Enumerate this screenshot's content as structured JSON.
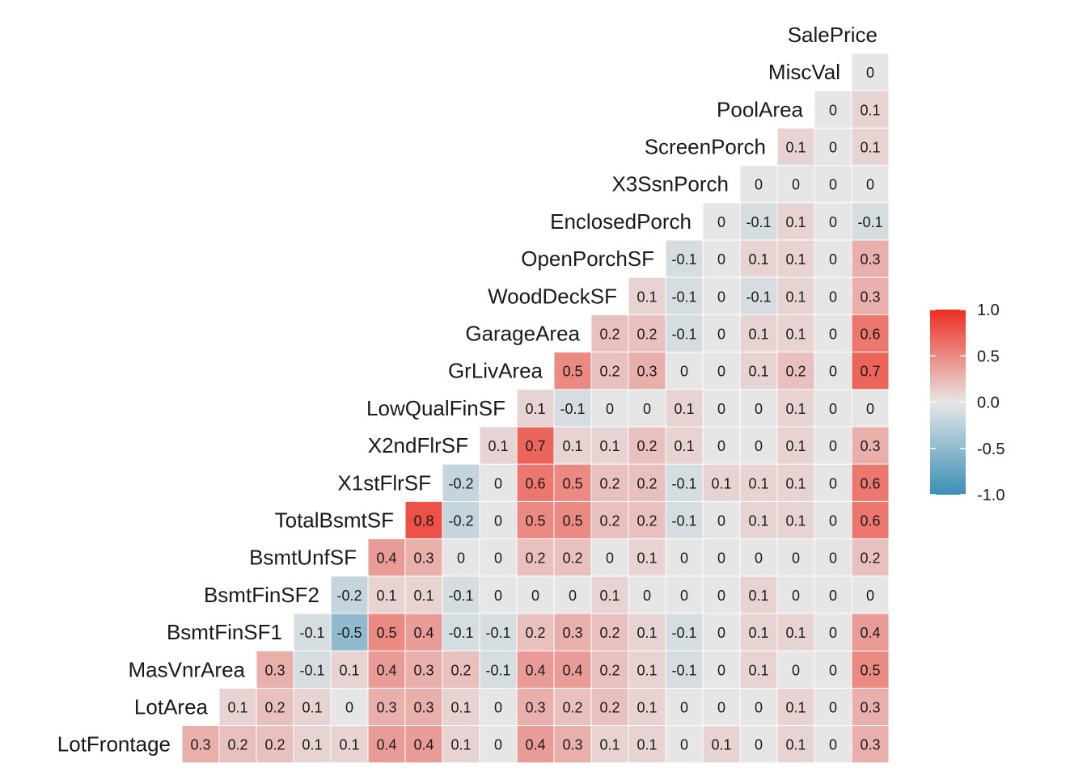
{
  "chart_data": {
    "type": "heatmap",
    "title": "",
    "xlabel": "",
    "ylabel": "",
    "variables": [
      "LotFrontage",
      "LotArea",
      "MasVnrArea",
      "BsmtFinSF1",
      "BsmtFinSF2",
      "BsmtUnfSF",
      "TotalBsmtSF",
      "X1stFlrSF",
      "X2ndFlrSF",
      "LowQualFinSF",
      "GrLivArea",
      "GarageArea",
      "WoodDeckSF",
      "OpenPorchSF",
      "EnclosedPorch",
      "X3SsnPorch",
      "ScreenPorch",
      "PoolArea",
      "MiscVal",
      "SalePrice"
    ],
    "row_labels": [
      "LotFrontage",
      "LotArea",
      "MasVnrArea",
      "BsmtFinSF1",
      "BsmtFinSF2",
      "BsmtUnfSF",
      "TotalBsmtSF",
      "X1stFlrSF",
      "X2ndFlrSF",
      "LowQualFinSF",
      "GrLivArea",
      "GarageArea",
      "WoodDeckSF",
      "OpenPorchSF",
      "EnclosedPorch",
      "X3SsnPorch",
      "ScreenPorch",
      "PoolArea",
      "MiscVal",
      "SalePrice"
    ],
    "matrix": [
      [],
      [
        0.3
      ],
      [
        0.2,
        0.1
      ],
      [
        0.2,
        0.2,
        0.3
      ],
      [
        0.1,
        0.1,
        -0.1,
        -0.1
      ],
      [
        0.1,
        0,
        0.1,
        -0.5,
        -0.2
      ],
      [
        0.4,
        0.3,
        0.4,
        0.5,
        0.1,
        0.4
      ],
      [
        0.4,
        0.3,
        0.3,
        0.4,
        0.1,
        0.3,
        0.8
      ],
      [
        0.1,
        0.1,
        0.2,
        -0.1,
        -0.1,
        0,
        -0.2,
        -0.2
      ],
      [
        0,
        0,
        -0.1,
        -0.1,
        0,
        0,
        0,
        0,
        0.1
      ],
      [
        0.4,
        0.3,
        0.4,
        0.2,
        0,
        0.2,
        0.5,
        0.6,
        0.7,
        0.1
      ],
      [
        0.3,
        0.2,
        0.4,
        0.3,
        0,
        0.2,
        0.5,
        0.5,
        0.1,
        -0.1,
        0.5
      ],
      [
        0.1,
        0.2,
        0.2,
        0.2,
        0.1,
        0,
        0.2,
        0.2,
        0.1,
        0,
        0.2,
        0.2
      ],
      [
        0.1,
        0.1,
        0.1,
        0.1,
        0,
        0.1,
        0.2,
        0.2,
        0.2,
        0,
        0.3,
        0.2,
        0.1
      ],
      [
        0,
        0,
        -0.1,
        -0.1,
        0,
        0,
        -0.1,
        -0.1,
        0.1,
        0.1,
        0,
        -0.1,
        -0.1,
        -0.1
      ],
      [
        0.1,
        0,
        0,
        0,
        0,
        0,
        0,
        0.1,
        0,
        0,
        0,
        0,
        0,
        0,
        0
      ],
      [
        0,
        0,
        0.1,
        0.1,
        0.1,
        0,
        0.1,
        0.1,
        0,
        0,
        0.1,
        0.1,
        -0.1,
        0.1,
        -0.1,
        0
      ],
      [
        0.1,
        0.1,
        0,
        0.1,
        0,
        0,
        0.1,
        0.1,
        0.1,
        0.1,
        0.2,
        0.1,
        0.1,
        0.1,
        0.1,
        0,
        0.1
      ],
      [
        0,
        0,
        0,
        0,
        0,
        0,
        0,
        0,
        0,
        0,
        0,
        0,
        0,
        0,
        0,
        0,
        0,
        0
      ],
      [
        0.3,
        0.3,
        0.5,
        0.4,
        0,
        0.2,
        0.6,
        0.6,
        0.3,
        0,
        0.7,
        0.6,
        0.3,
        0.3,
        -0.1,
        0,
        0.1,
        0.1,
        0
      ]
    ],
    "legend": {
      "ticks": [
        "1.0",
        "0.5",
        "0.0",
        "-0.5",
        "-1.0"
      ],
      "tick_values": [
        1.0,
        0.5,
        0.0,
        -0.5,
        -1.0
      ],
      "range": [
        -1,
        1
      ],
      "placement": "right"
    },
    "colors": {
      "low": "#3A8FB7",
      "mid": "#E6E6E6",
      "high": "#EE2D20"
    }
  }
}
